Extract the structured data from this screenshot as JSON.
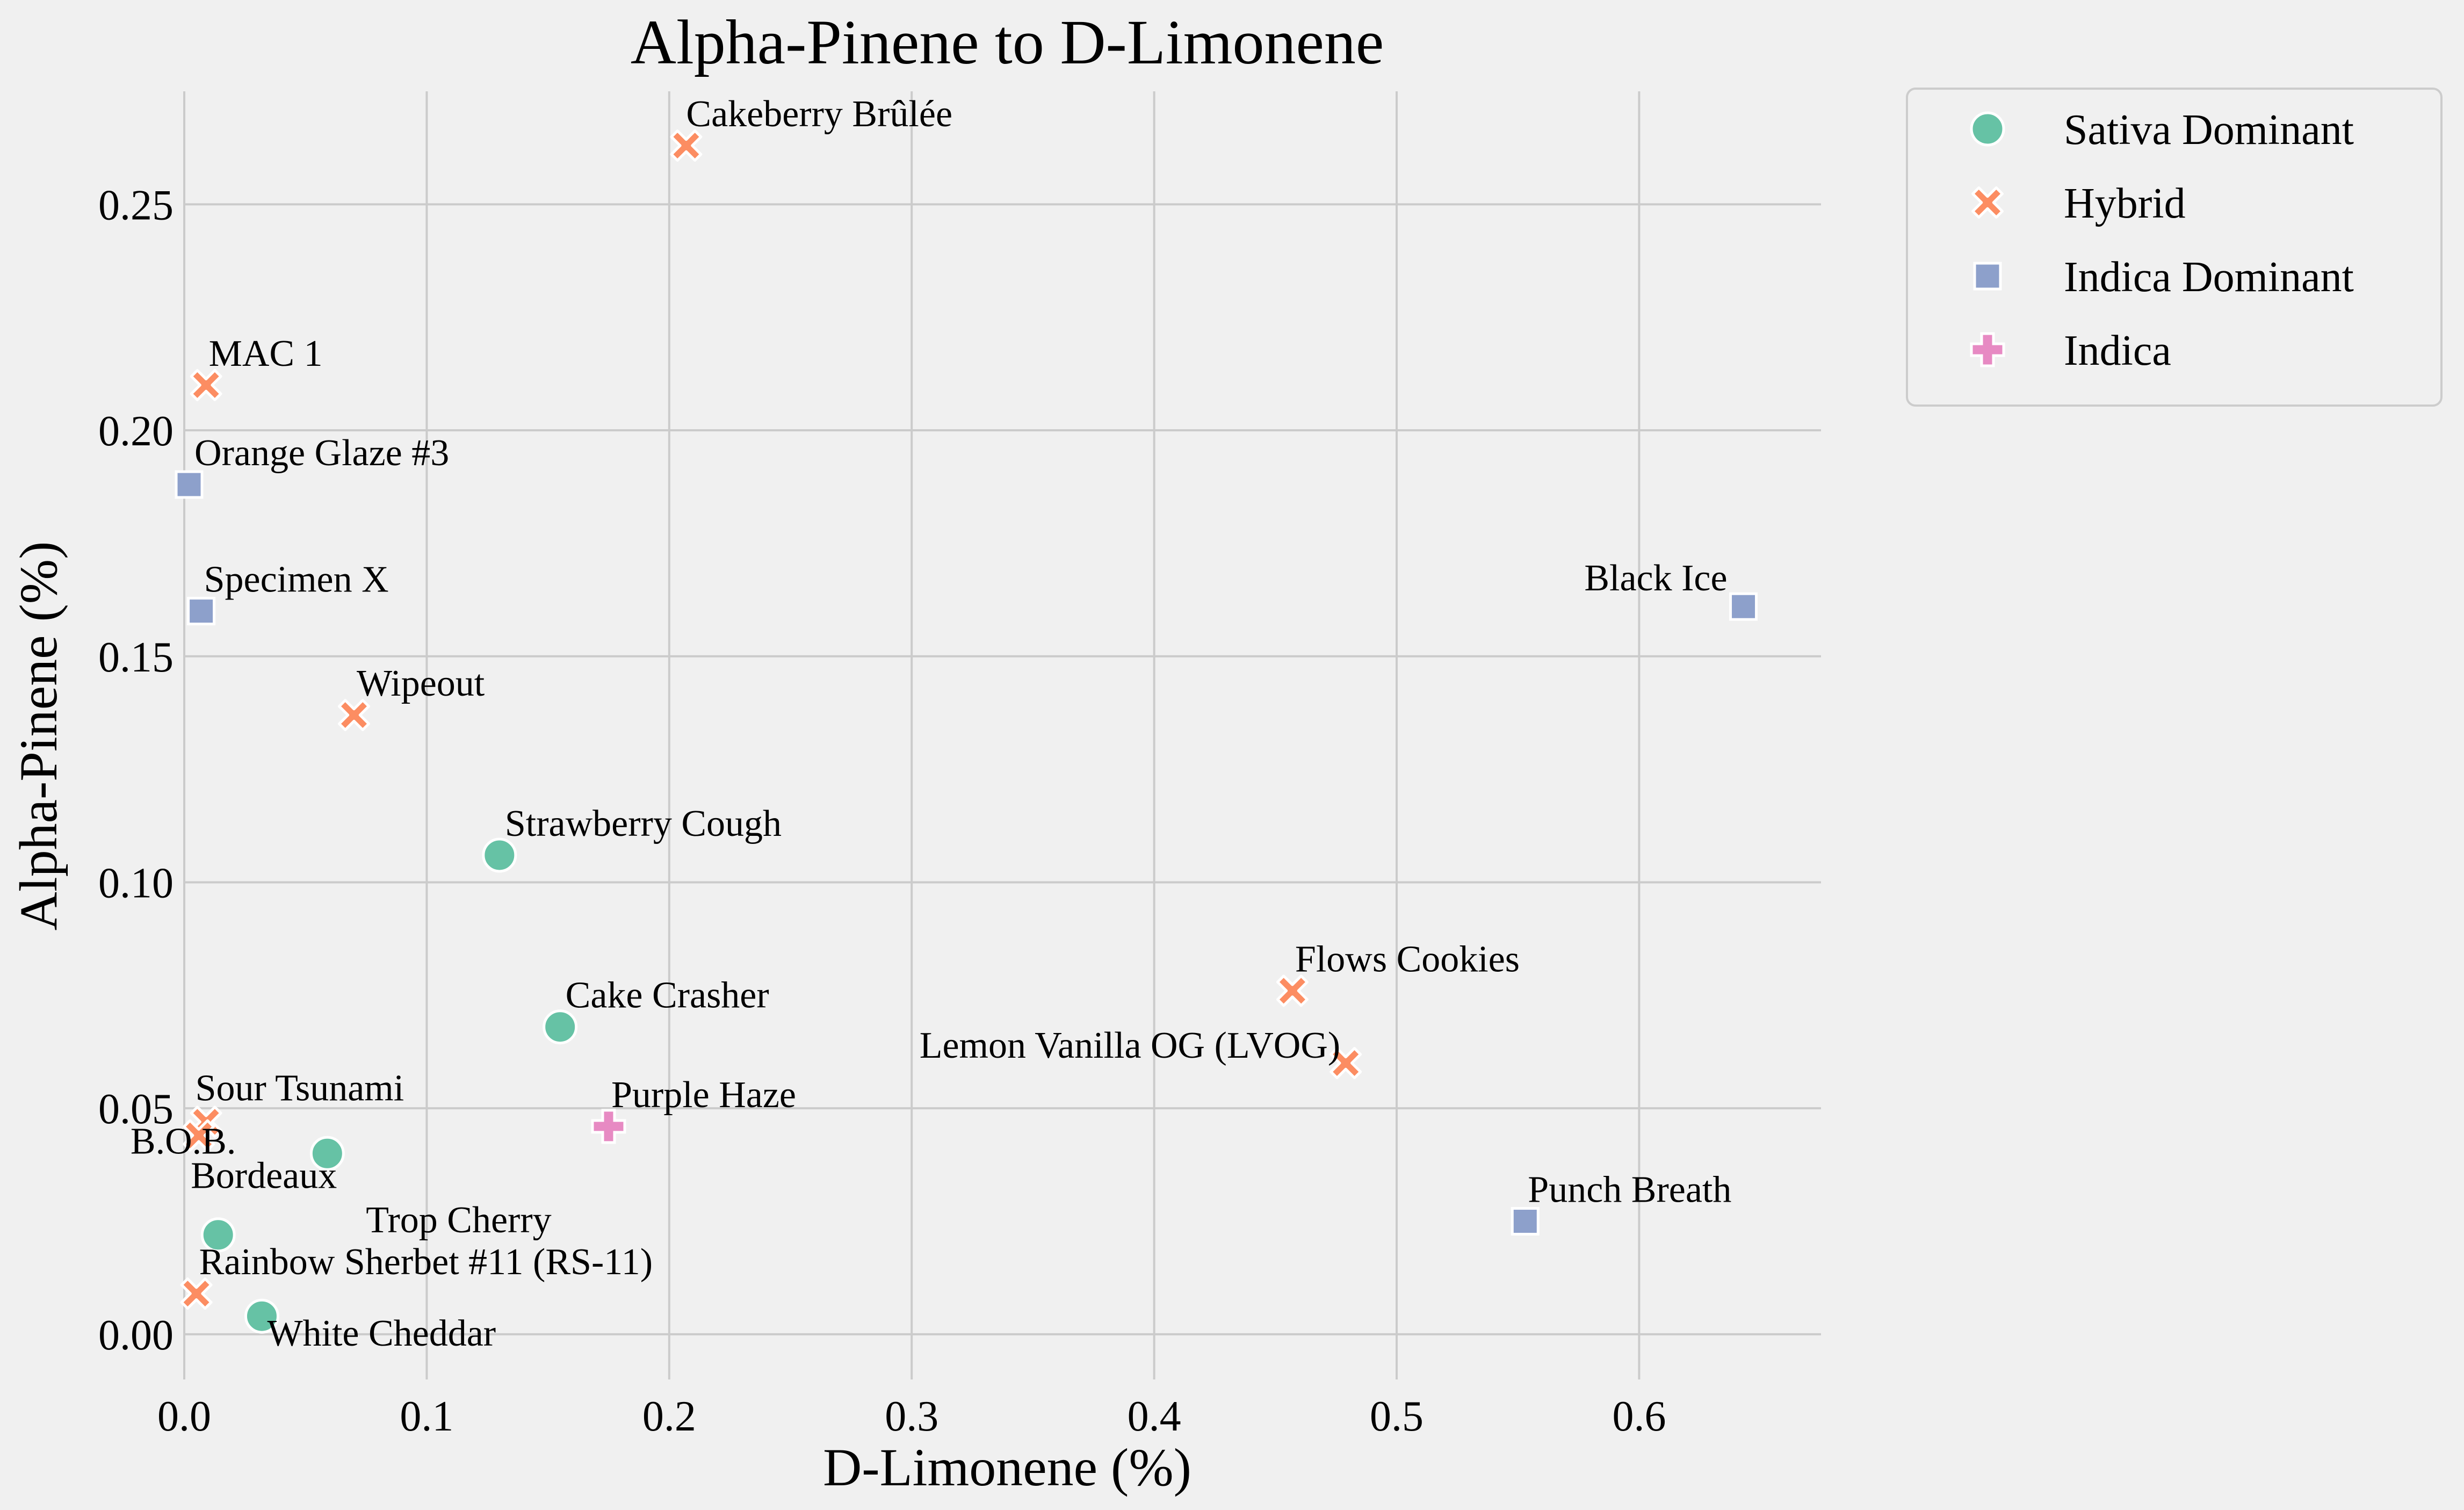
{
  "chart_data": {
    "type": "scatter",
    "title": "Alpha-Pinene to D-Limonene",
    "xlabel": "D-Limonene (%)",
    "ylabel": "Alpha-Pinene (%)",
    "xlim": [
      0,
      0.675
    ],
    "ylim": [
      -0.01,
      0.275
    ],
    "xticks": [
      0.0,
      0.1,
      0.2,
      0.3,
      0.4,
      0.5,
      0.6
    ],
    "xtick_labels": [
      "0.0",
      "0.1",
      "0.2",
      "0.3",
      "0.4",
      "0.5",
      "0.6"
    ],
    "yticks": [
      0.0,
      0.05,
      0.1,
      0.15,
      0.2,
      0.25
    ],
    "ytick_labels": [
      "0.00",
      "0.05",
      "0.10",
      "0.15",
      "0.20",
      "0.25"
    ],
    "grid": true,
    "legend_position": "outside-top-right",
    "series": [
      {
        "name": "Sativa Dominant",
        "marker": "circle",
        "color": "#66c2a5",
        "points": [
          {
            "label": "Strawberry Cough",
            "x": 0.13,
            "y": 0.106
          },
          {
            "label": "Cake Crasher",
            "x": 0.155,
            "y": 0.068
          },
          {
            "label": "B.O.B.",
            "x": 0.059,
            "y": 0.04
          },
          {
            "label": "Trop Cherry",
            "x": 0.014,
            "y": 0.022
          },
          {
            "label": "White Cheddar",
            "x": 0.032,
            "y": 0.004
          }
        ]
      },
      {
        "name": "Hybrid",
        "marker": "x",
        "color": "#fc8d62",
        "points": [
          {
            "label": "Cakeberry Brûlée",
            "x": 0.207,
            "y": 0.263
          },
          {
            "label": "MAC 1",
            "x": 0.009,
            "y": 0.21
          },
          {
            "label": "Wipeout",
            "x": 0.07,
            "y": 0.137
          },
          {
            "label": "Flows Cookies",
            "x": 0.457,
            "y": 0.076
          },
          {
            "label": "Lemon Vanilla OG (LVOG)",
            "x": 0.479,
            "y": 0.06
          },
          {
            "label": "Sour Tsunami",
            "x": 0.009,
            "y": 0.047
          },
          {
            "label": "Bordeaux",
            "x": 0.006,
            "y": 0.044
          },
          {
            "label": "Rainbow Sherbet #11 (RS-11)",
            "x": 0.005,
            "y": 0.009
          }
        ]
      },
      {
        "name": "Indica Dominant",
        "marker": "square",
        "color": "#8da0cb",
        "points": [
          {
            "label": "Orange Glaze #3",
            "x": 0.002,
            "y": 0.188
          },
          {
            "label": "Specimen X",
            "x": 0.007,
            "y": 0.16
          },
          {
            "label": "Black Ice",
            "x": 0.643,
            "y": 0.161
          },
          {
            "label": "Punch Breath",
            "x": 0.553,
            "y": 0.025
          }
        ]
      },
      {
        "name": "Indica",
        "marker": "plus",
        "color": "#e78ac3",
        "points": [
          {
            "label": "Purple Haze",
            "x": 0.175,
            "y": 0.046
          }
        ]
      }
    ]
  }
}
